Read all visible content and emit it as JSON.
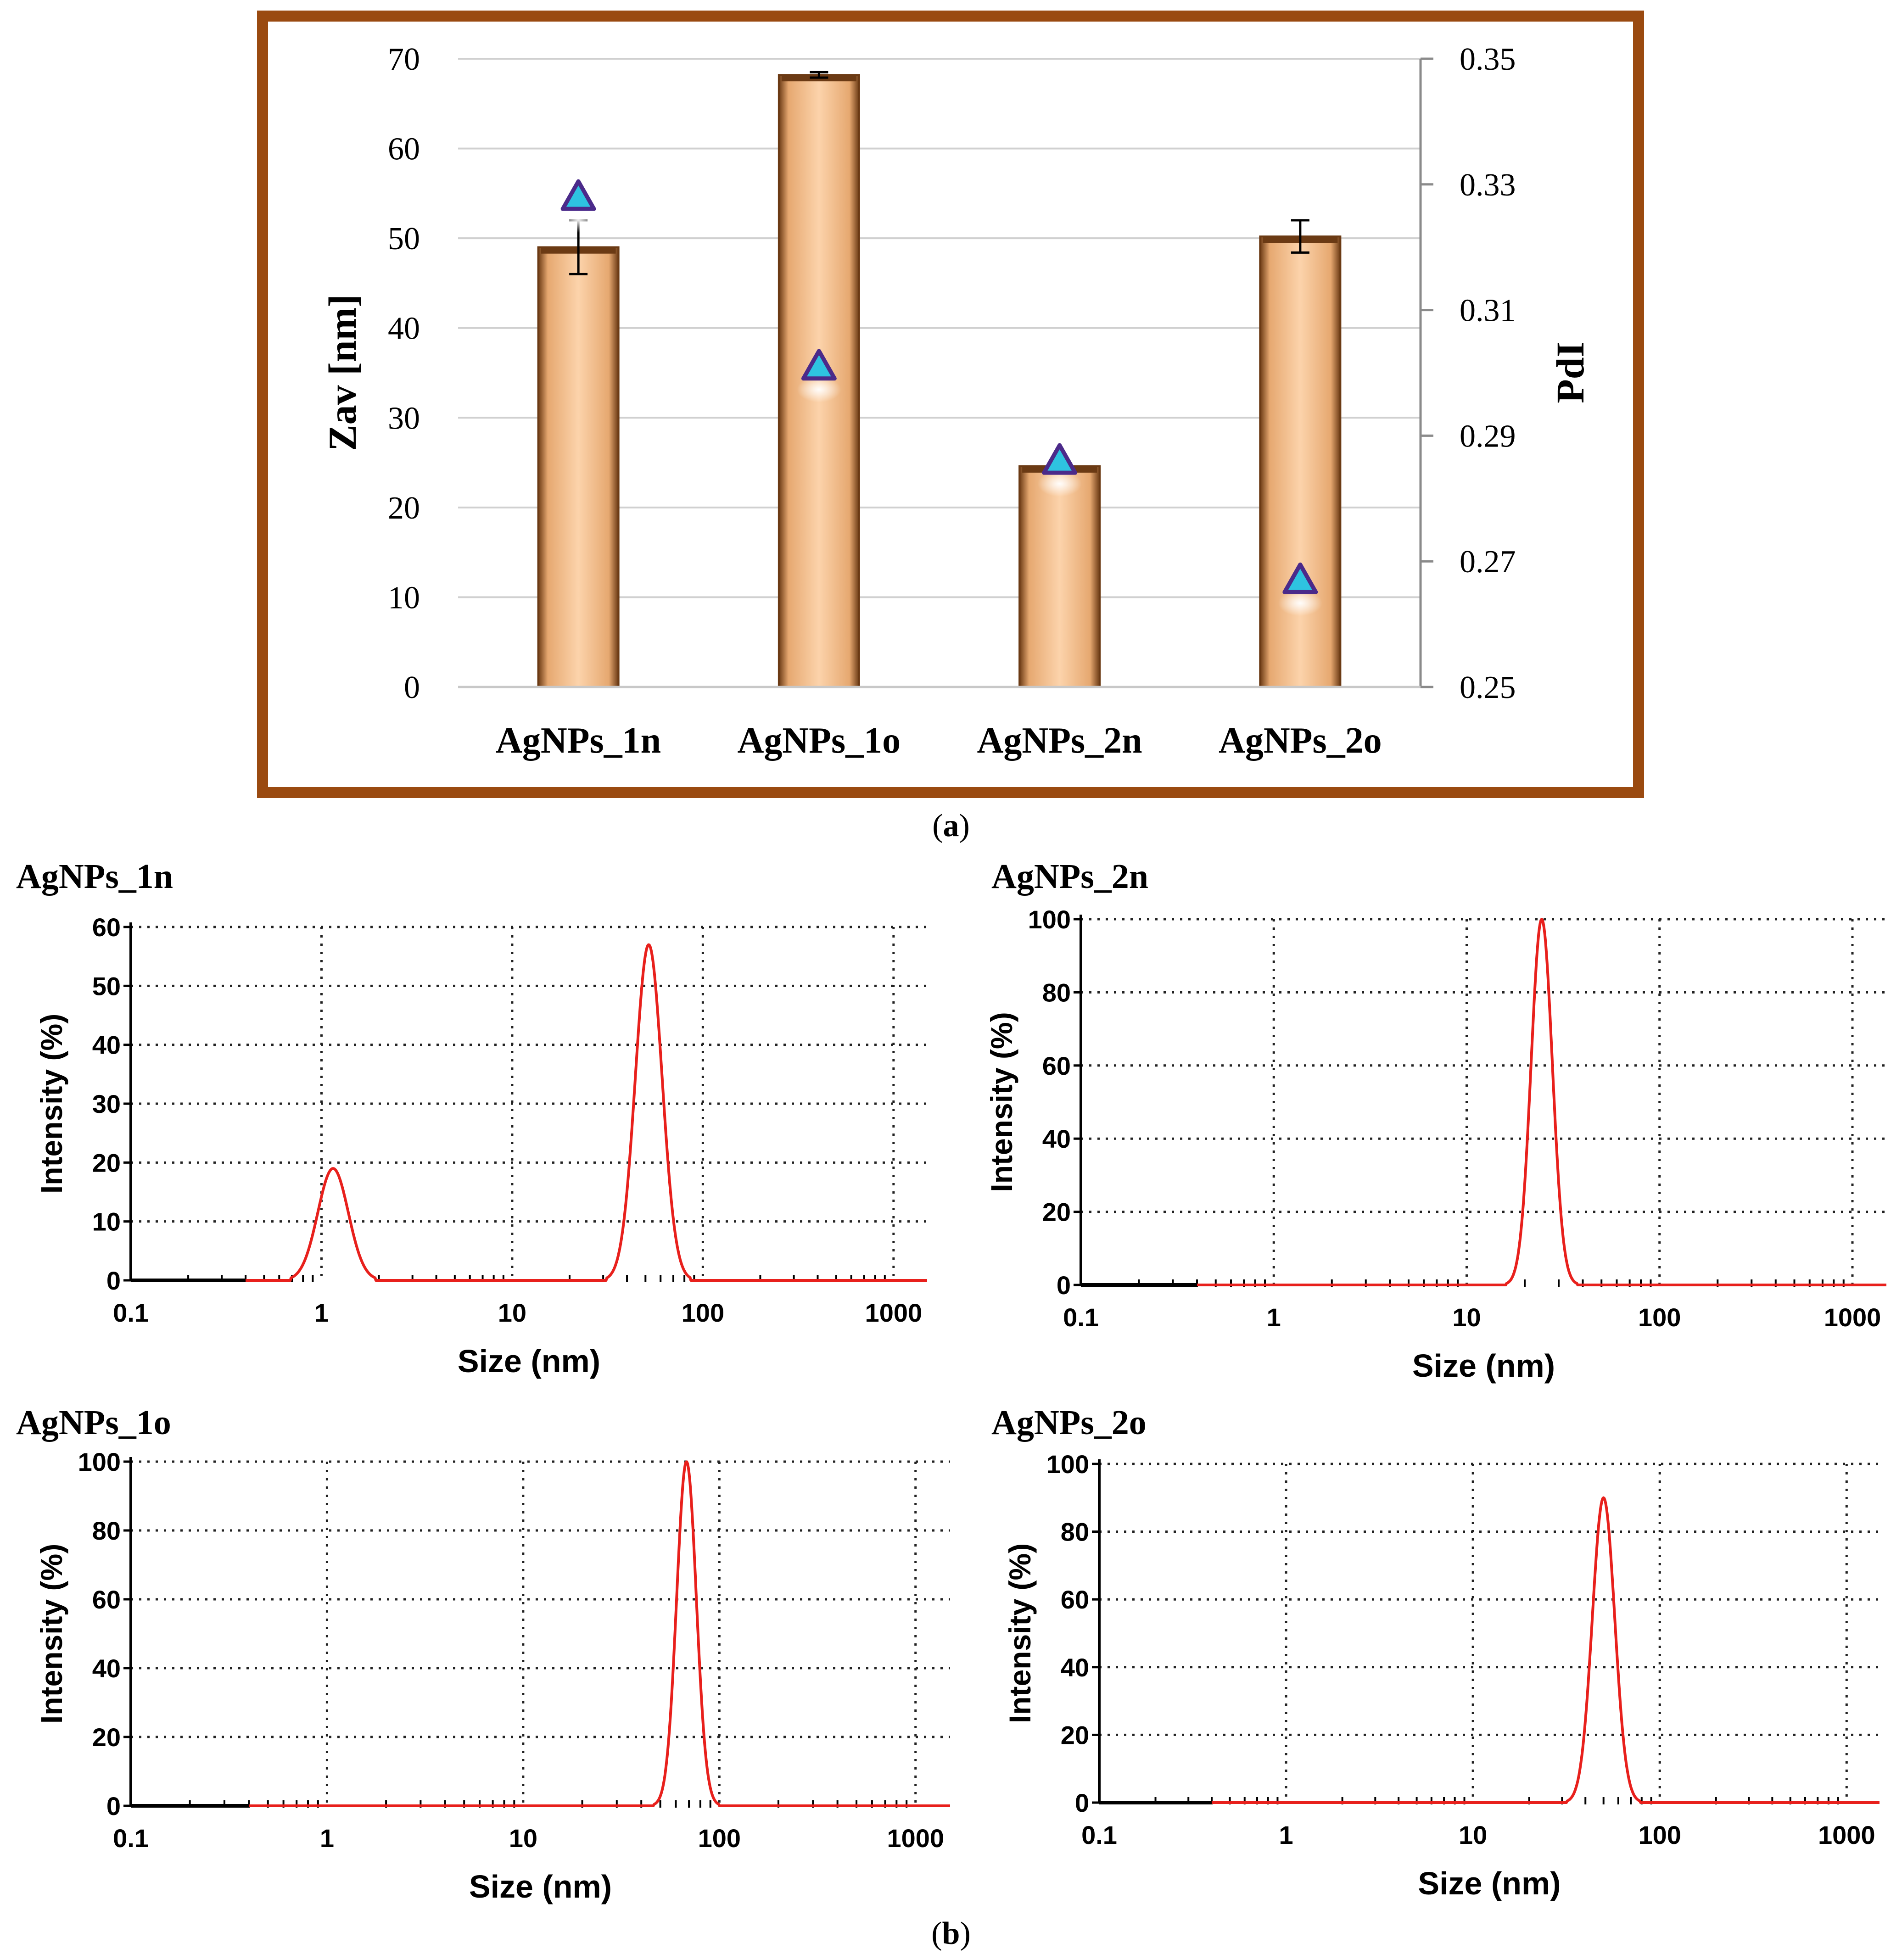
{
  "chart_data": [
    {
      "id": "a",
      "type": "bar",
      "panel_label": "a",
      "categories": [
        "AgNPs_1n",
        "AgNPs_1o",
        "AgNPs_2n",
        "AgNPs_2o"
      ],
      "series": [
        {
          "name": "Zav",
          "axis": "left",
          "values": [
            49,
            68.2,
            24.6,
            50.2
          ],
          "errors": [
            3,
            0.3,
            0,
            1.8
          ]
        },
        {
          "name": "PdI",
          "axis": "right",
          "marker": "triangle",
          "values": [
            0.328,
            0.301,
            0.286,
            0.267
          ]
        }
      ],
      "ylabel": "Zav [nm]",
      "y2label": "PdI",
      "ylim": [
        0,
        70
      ],
      "y2lim": [
        0.25,
        0.35
      ],
      "yticks": [
        "0",
        "10",
        "20",
        "30",
        "40",
        "50",
        "60",
        "70"
      ],
      "y2ticks": [
        "0.25",
        "0.27",
        "0.29",
        "0.31",
        "0.33",
        "0.35"
      ],
      "grid": true
    },
    {
      "id": "b1",
      "type": "line",
      "title": "AgNPs_1n",
      "xlabel": "Size (nm)",
      "ylabel": "Intensity (%)",
      "xscale": "log",
      "xlim": [
        0.1,
        1500
      ],
      "ylim": [
        0,
        60
      ],
      "xticks": [
        "0.1",
        "1",
        "10",
        "100",
        "1000"
      ],
      "yticks": [
        "0",
        "10",
        "20",
        "30",
        "40",
        "50",
        "60"
      ],
      "peaks": [
        {
          "center": 1.15,
          "height": 19,
          "width": 0.08
        },
        {
          "center": 52,
          "height": 57,
          "width": 0.07
        }
      ]
    },
    {
      "id": "b2",
      "type": "line",
      "title": "AgNPs_2n",
      "xlabel": "Size (nm)",
      "ylabel": "Intensity (%)",
      "xscale": "log",
      "xlim": [
        0.1,
        1500
      ],
      "ylim": [
        0,
        100
      ],
      "xticks": [
        "0.1",
        "1",
        "10",
        "100",
        "1000"
      ],
      "yticks": [
        "0",
        "20",
        "40",
        "60",
        "80",
        "100"
      ],
      "peaks": [
        {
          "center": 24.5,
          "height": 100,
          "width": 0.055
        }
      ]
    },
    {
      "id": "b3",
      "type": "line",
      "title": "AgNPs_1o",
      "xlabel": "Size (nm)",
      "ylabel": "Intensity (%)",
      "xscale": "log",
      "xlim": [
        0.1,
        1500
      ],
      "ylim": [
        0,
        100
      ],
      "xticks": [
        "0.1",
        "1",
        "10",
        "100",
        "1000"
      ],
      "yticks": [
        "0",
        "20",
        "40",
        "60",
        "80",
        "100"
      ],
      "peaks": [
        {
          "center": 68,
          "height": 100,
          "width": 0.05
        }
      ]
    },
    {
      "id": "b4",
      "type": "line",
      "title": "AgNPs_2o",
      "xlabel": "Size (nm)",
      "ylabel": "Intensity (%)",
      "xscale": "log",
      "xlim": [
        0.1,
        1500
      ],
      "ylim": [
        0,
        100
      ],
      "xticks": [
        "0.1",
        "1",
        "10",
        "100",
        "1000"
      ],
      "yticks": [
        "0",
        "20",
        "40",
        "60",
        "80",
        "100"
      ],
      "peaks": [
        {
          "center": 50,
          "height": 90,
          "width": 0.06
        }
      ]
    }
  ],
  "panel_b_label": "b",
  "colors": {
    "frame": "#9a4a10",
    "bar_fill": "#f9c79a",
    "bar_edge": "#6b3a14",
    "grid": "#d0d0d0",
    "marker_fill": "#2ec3e0",
    "marker_edge": "#4b2a8a",
    "size_line": "#e8201c"
  }
}
